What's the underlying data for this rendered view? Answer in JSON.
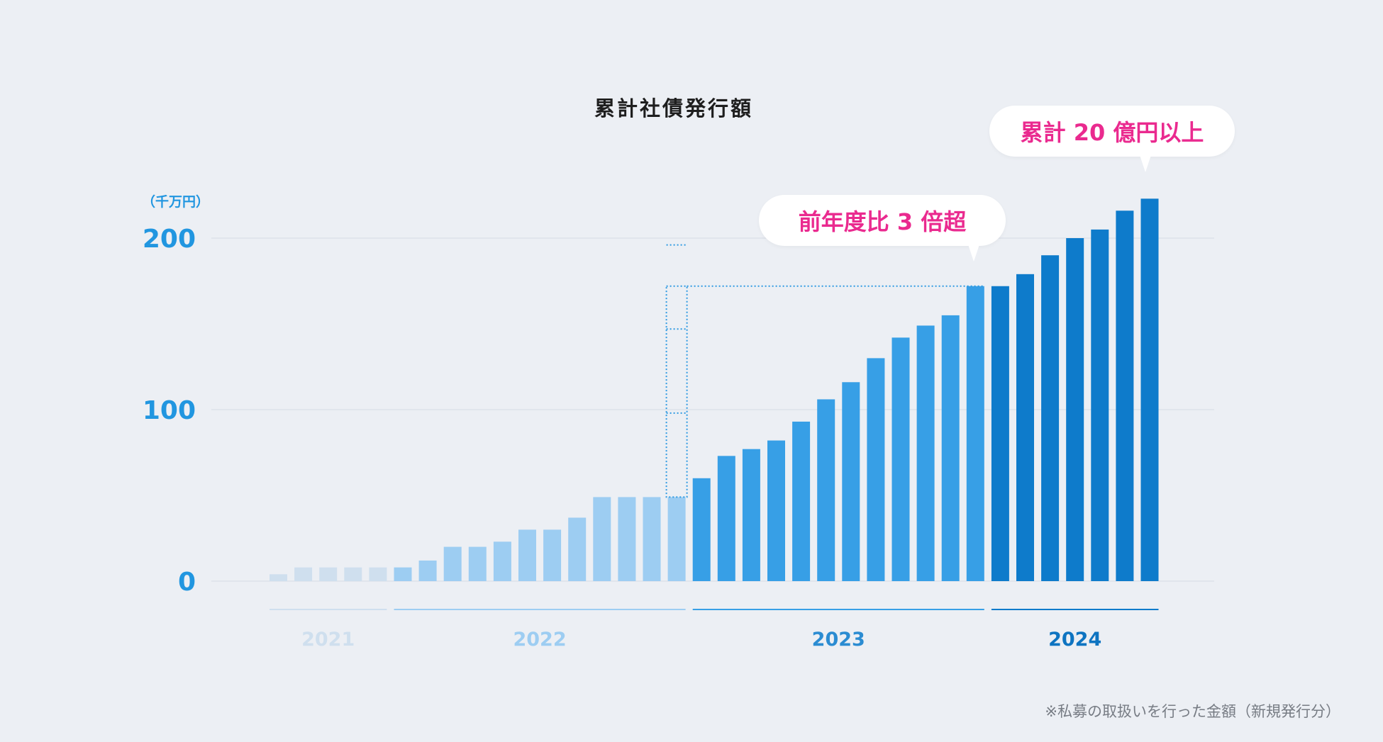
{
  "chart_data": {
    "type": "bar",
    "title": "累計社債発行額",
    "unit_label": "（千万円）",
    "ylim": [
      0,
      200
    ],
    "yticks": [
      0,
      100,
      200
    ],
    "grid": true,
    "values": [
      4,
      8,
      8,
      8,
      8,
      8,
      12,
      20,
      20,
      23,
      30,
      30,
      37,
      49,
      49,
      49,
      49,
      60,
      73,
      77,
      82,
      93,
      106,
      116,
      130,
      142,
      149,
      155,
      172,
      172,
      179,
      190,
      200,
      205,
      216,
      223
    ],
    "groups": [
      {
        "label": "2021",
        "start": 0,
        "end": 4,
        "color": "#cfdfee",
        "label_color": "#cfdfee",
        "line_color": "#cfdfee"
      },
      {
        "label": "2022",
        "start": 5,
        "end": 16,
        "color": "#9dcdf2",
        "label_color": "#9dcdf2",
        "line_color": "#9dcdf2"
      },
      {
        "label": "2023",
        "start": 17,
        "end": 28,
        "color": "#379fe6",
        "label_color": "#2b8cd2",
        "line_color": "#379fe6"
      },
      {
        "label": "2024",
        "start": 29,
        "end": 35,
        "color": "#0e7bcb",
        "label_color": "#0e74c1",
        "line_color": "#0e7bcb"
      }
    ],
    "annotations": [
      "前年度比 3 倍超",
      "累計 20 億円以上"
    ],
    "comparison": {
      "from_index": 16,
      "to_index": 28
    }
  },
  "footnote": "※私募の取扱いを行った金額（新規発行分）"
}
